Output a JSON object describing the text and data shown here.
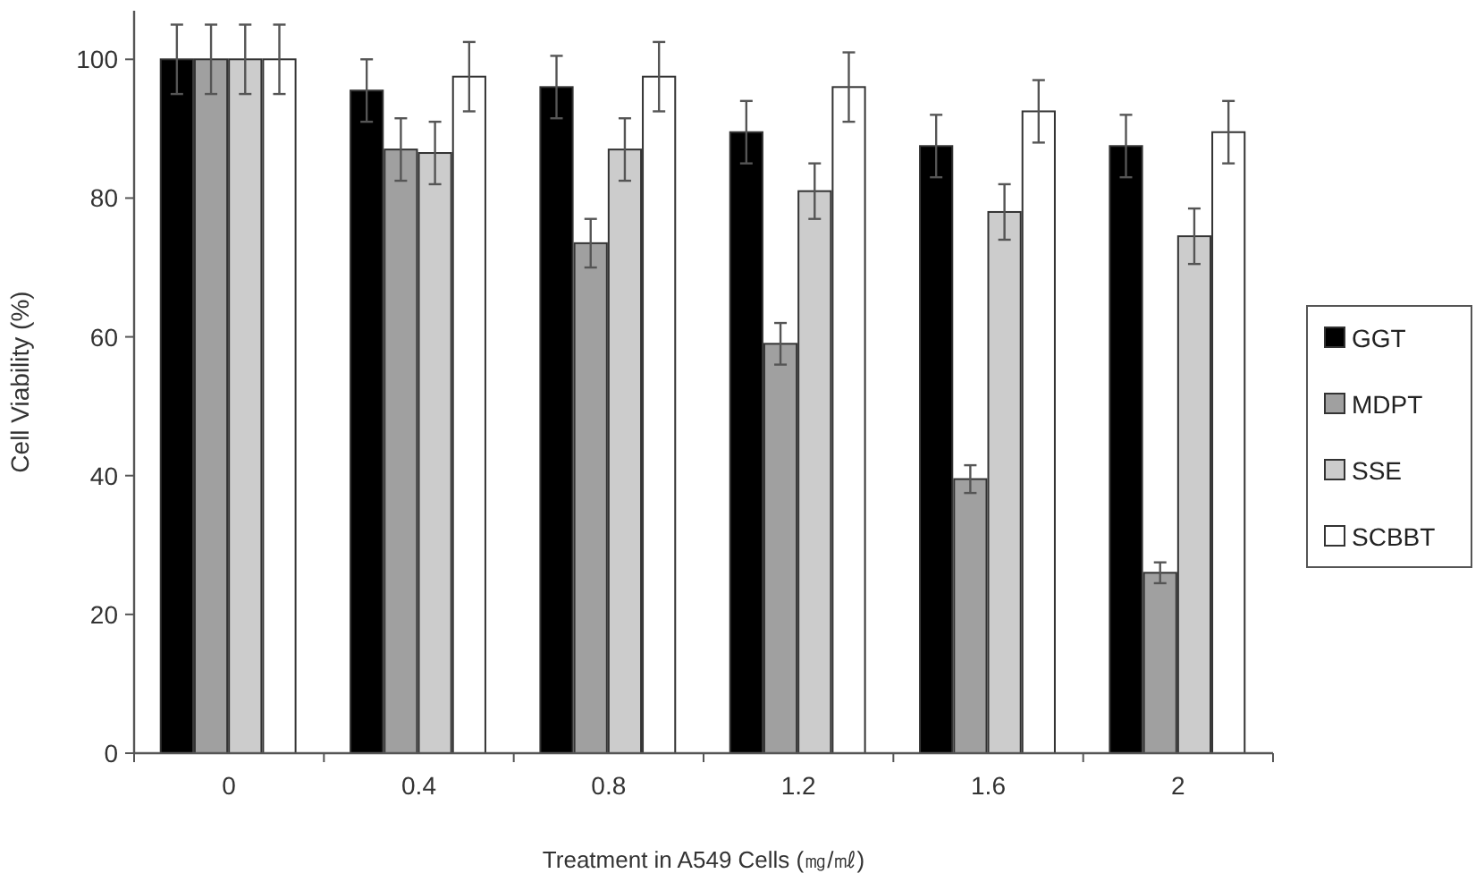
{
  "chart_data": {
    "type": "bar",
    "xlabel": "Treatment in A549 Cells (㎎/㎖)",
    "ylabel": "Cell Viability (%)",
    "categories": [
      "0",
      "0.4",
      "0.8",
      "1.2",
      "1.6",
      "2"
    ],
    "ylim": [
      0,
      107
    ],
    "yticks": [
      0,
      20,
      40,
      60,
      80,
      100
    ],
    "grid": false,
    "legend": "right",
    "series": [
      {
        "name": "GGT",
        "color": "#000000",
        "values": [
          100,
          95.5,
          96,
          89.5,
          87.5,
          87.5
        ],
        "errors": [
          5,
          4.5,
          4.5,
          4.5,
          4.5,
          4.5
        ]
      },
      {
        "name": "MDPT",
        "color": "#a0a0a0",
        "values": [
          100,
          87,
          73.5,
          59,
          39.5,
          26
        ],
        "errors": [
          5,
          4.5,
          3.5,
          3,
          2,
          1.5
        ]
      },
      {
        "name": "SSE",
        "color": "#cccccc",
        "values": [
          100,
          86.5,
          87,
          81,
          78,
          74.5
        ],
        "errors": [
          5,
          4.5,
          4.5,
          4,
          4,
          4
        ]
      },
      {
        "name": "SCBBT",
        "color": "#ffffff",
        "values": [
          100,
          97.5,
          97.5,
          96,
          92.5,
          89.5
        ],
        "errors": [
          5,
          5,
          5,
          5,
          4.5,
          4.5
        ]
      }
    ]
  }
}
